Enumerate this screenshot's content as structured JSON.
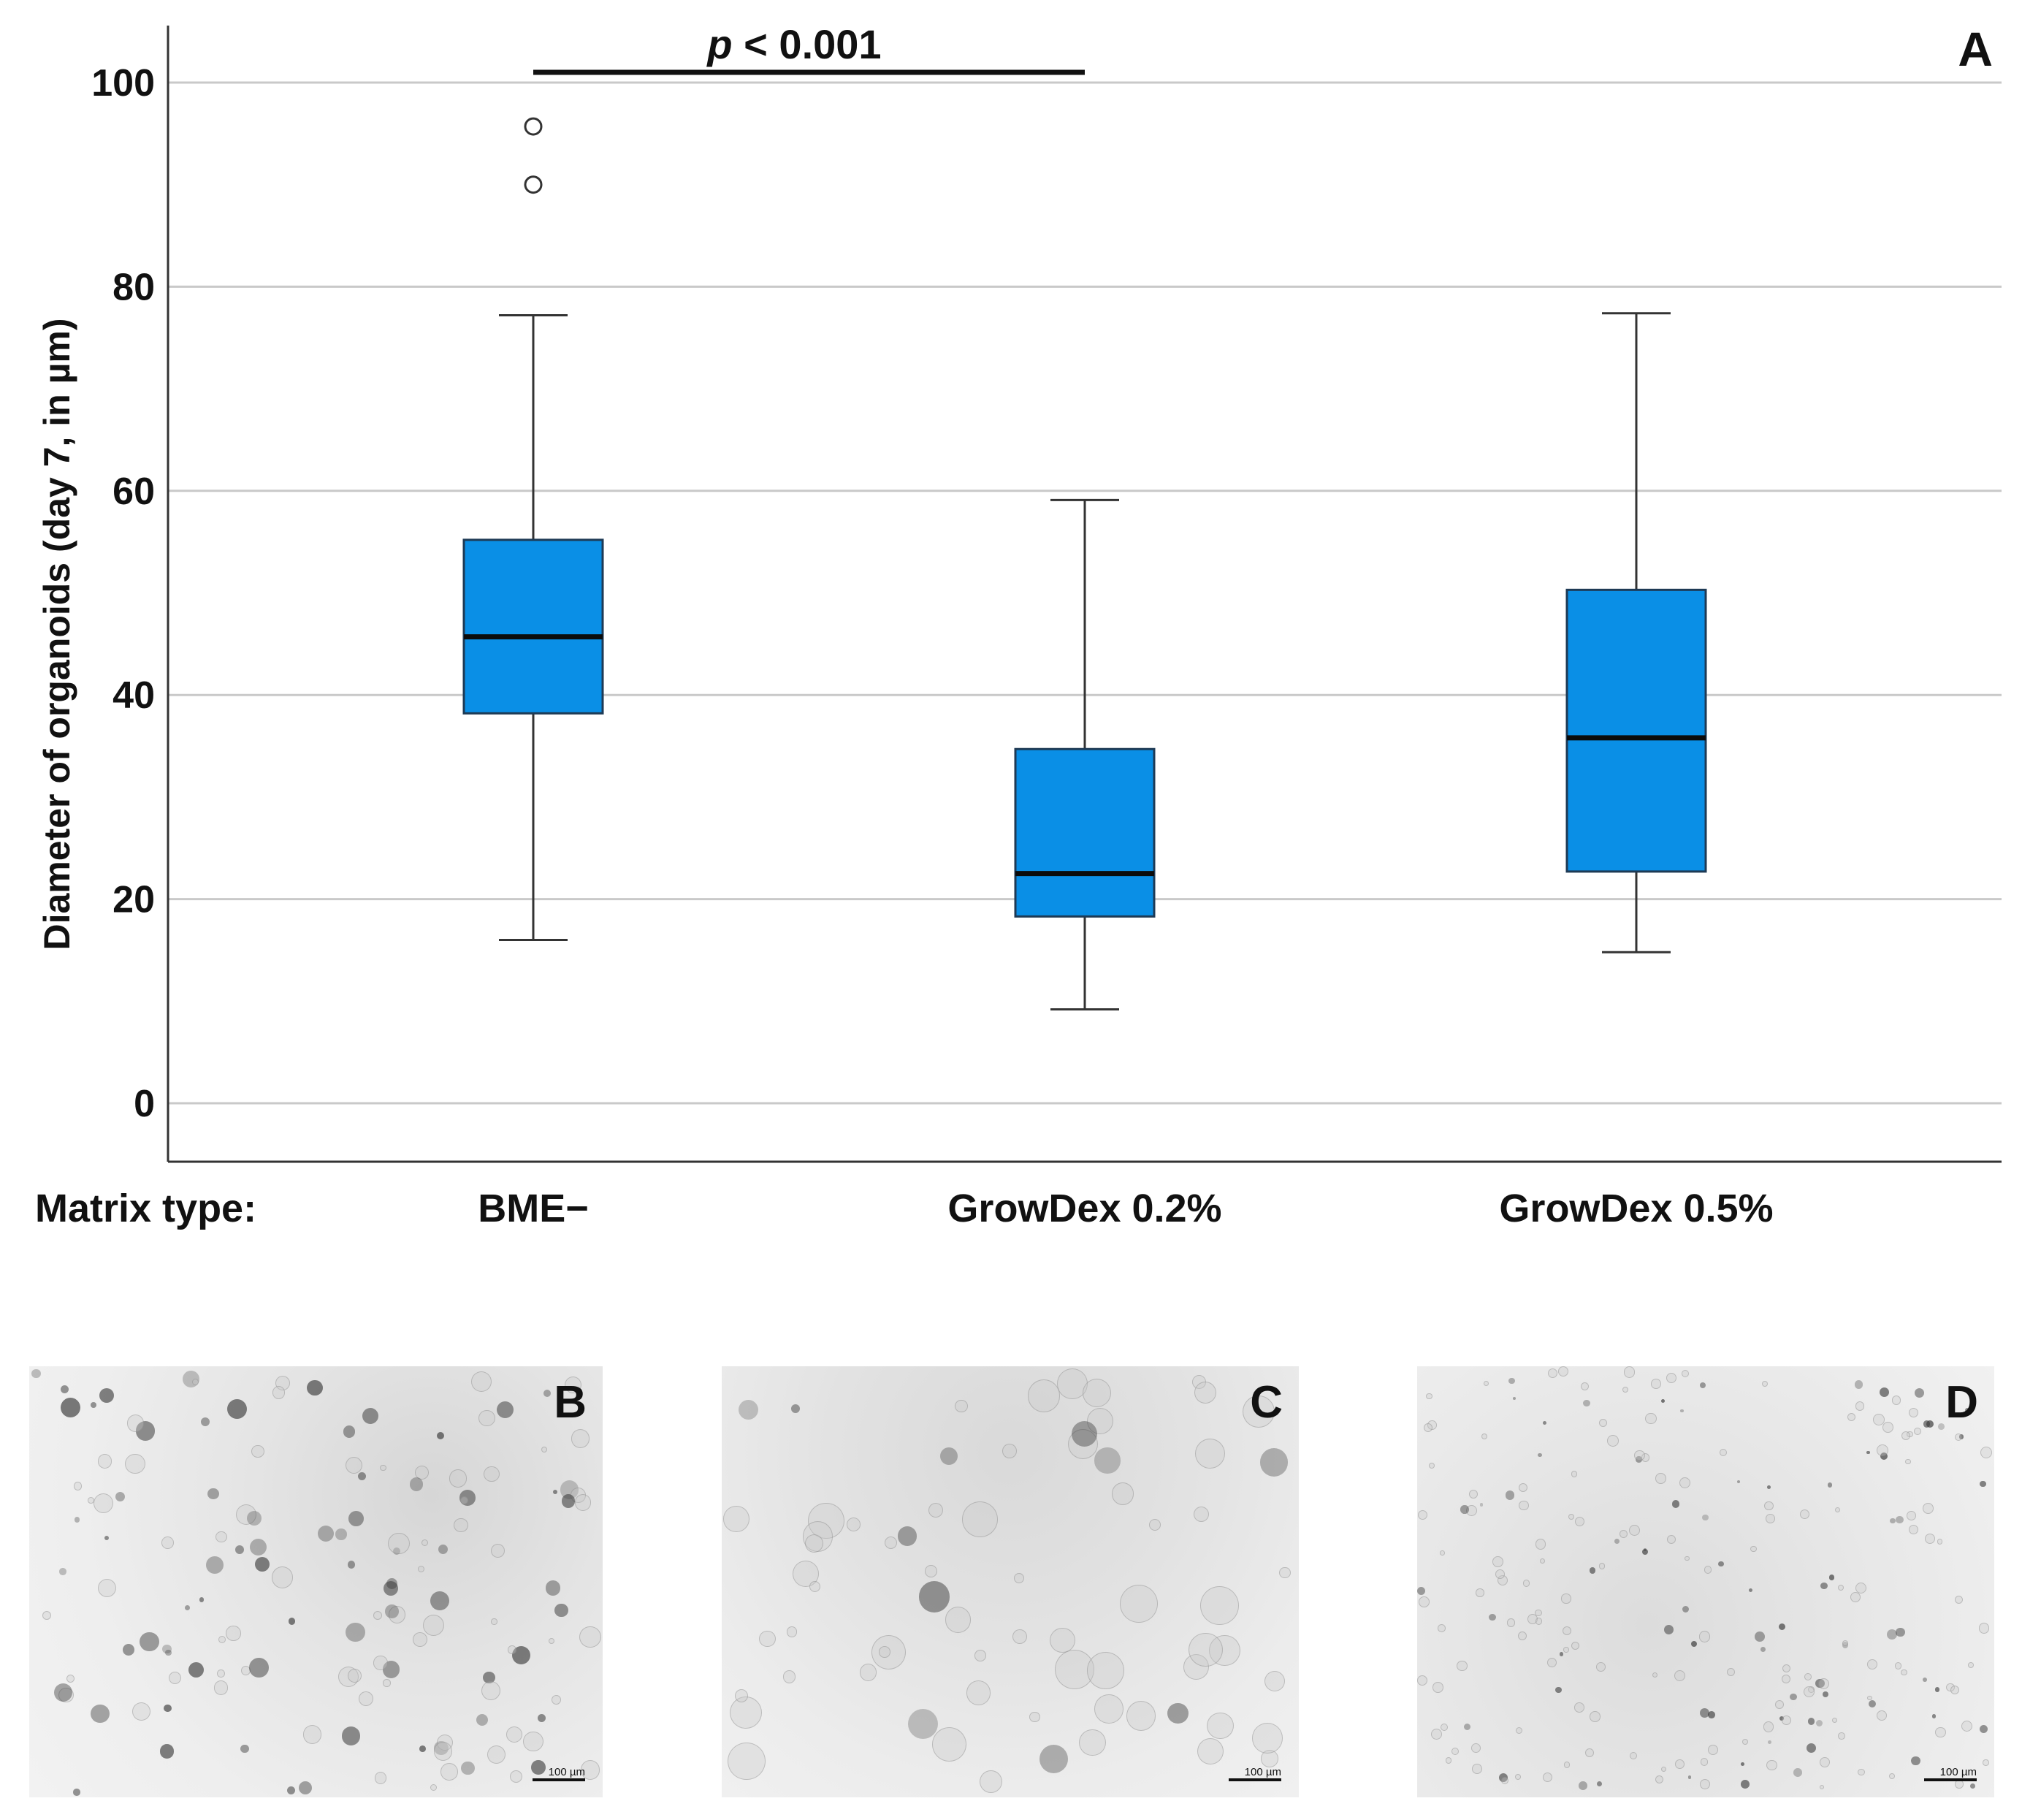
{
  "chart_data": {
    "type": "boxplot",
    "panel_label": "A",
    "ylabel": "Diameter of organoids (day 7, in µm)",
    "xlabel": "Matrix type:",
    "ylim": [
      -5,
      105
    ],
    "yticks": [
      0,
      20,
      40,
      60,
      80,
      100
    ],
    "grid": true,
    "categories": [
      "BME−",
      "GrowDex 0.2%",
      "GrowDex 0.5%"
    ],
    "boxes": [
      {
        "whisker_low": 16,
        "q1": 38.2,
        "median": 45.7,
        "q3": 55.2,
        "whisker_high": 77.2,
        "outliers": [
          90,
          95.7
        ]
      },
      {
        "whisker_low": 9.2,
        "q1": 18.3,
        "median": 22.5,
        "q3": 34.7,
        "whisker_high": 59.1,
        "outliers": []
      },
      {
        "whisker_low": 14.8,
        "q1": 22.7,
        "median": 35.8,
        "q3": 50.3,
        "whisker_high": 77.4,
        "outliers": []
      }
    ],
    "box_color": "#0a8fe6",
    "significance": {
      "prefix": "p",
      "text": "< 0.001",
      "from_category": 0,
      "to_category": 1
    }
  },
  "micrographs": [
    {
      "label": "B",
      "scale_text": "100 µm"
    },
    {
      "label": "C",
      "scale_text": "100 µm"
    },
    {
      "label": "D",
      "scale_text": "100 µm"
    }
  ]
}
